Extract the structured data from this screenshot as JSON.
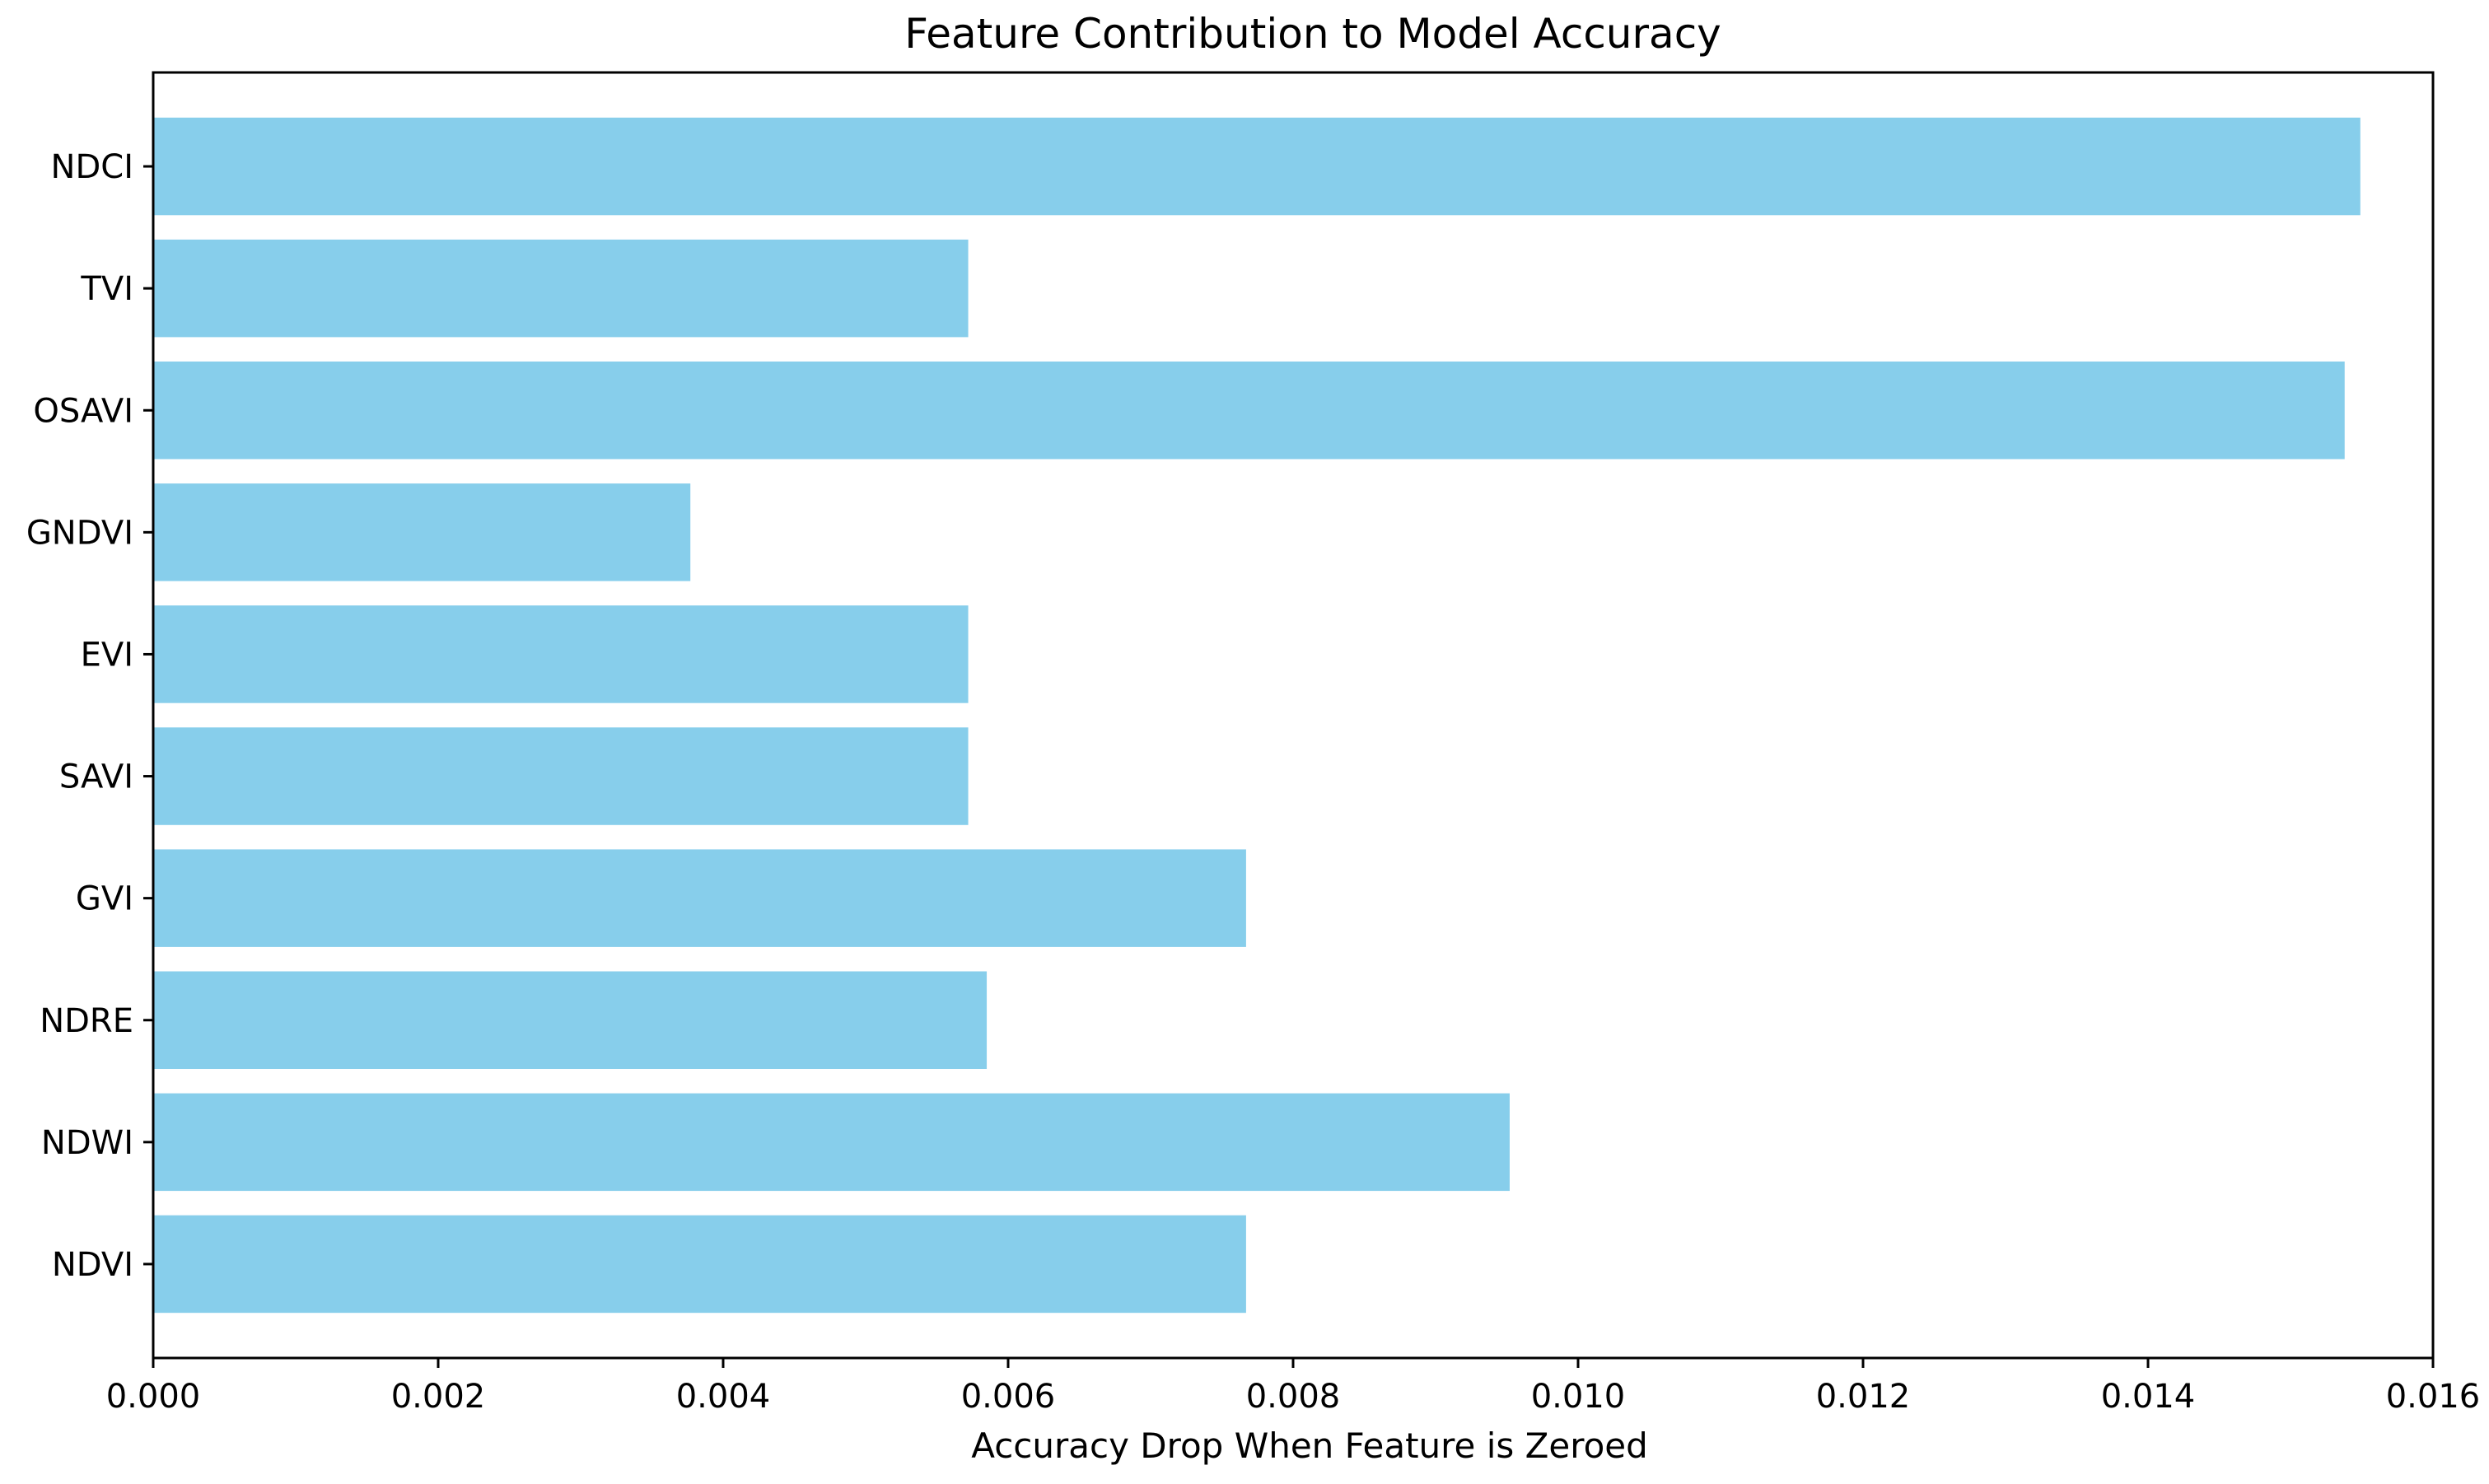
{
  "chart_data": {
    "type": "bar",
    "orientation": "horizontal",
    "title": "Feature Contribution to Model Accuracy",
    "xlabel": "Accuracy Drop When Feature is Zeroed",
    "ylabel": "",
    "categories": [
      "NDVI",
      "NDWI",
      "NDRE",
      "GVI",
      "SAVI",
      "EVI",
      "GNDVI",
      "OSAVI",
      "TVI",
      "NDCI"
    ],
    "values": [
      0.00767,
      0.00952,
      0.00585,
      0.00767,
      0.00572,
      0.00572,
      0.00377,
      0.01538,
      0.00572,
      0.01549
    ],
    "xlim": [
      0.0,
      0.016
    ],
    "xticks": [
      "0.000",
      "0.002",
      "0.004",
      "0.006",
      "0.008",
      "0.010",
      "0.012",
      "0.014",
      "0.016"
    ],
    "bar_color": "#87CEEB",
    "grid": false,
    "legend": "none"
  }
}
